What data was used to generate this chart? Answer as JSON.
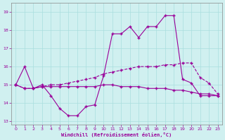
{
  "xlabel": "Windchill (Refroidissement éolien,°C)",
  "xlim": [
    -0.5,
    23.5
  ],
  "ylim": [
    12.8,
    19.5
  ],
  "yticks": [
    13,
    14,
    15,
    16,
    17,
    18,
    19
  ],
  "xticks": [
    0,
    1,
    2,
    3,
    4,
    5,
    6,
    7,
    8,
    9,
    10,
    11,
    12,
    13,
    14,
    15,
    16,
    17,
    18,
    19,
    20,
    21,
    22,
    23
  ],
  "bg_color": "#d0f0f0",
  "line_color": "#990099",
  "grid_color": "#a8dede",
  "line1_x": [
    0,
    1,
    2,
    3,
    4,
    5,
    6,
    7,
    8,
    9,
    10,
    11,
    12,
    13,
    14,
    15,
    16,
    17,
    18,
    19,
    20,
    21,
    22,
    23
  ],
  "line1_y": [
    15.0,
    16.0,
    14.8,
    15.0,
    14.4,
    13.7,
    13.3,
    13.3,
    13.8,
    13.9,
    15.5,
    17.8,
    17.8,
    18.2,
    17.6,
    18.2,
    18.2,
    18.8,
    18.8,
    15.3,
    15.1,
    14.4,
    14.4,
    14.4
  ],
  "line2_x": [
    0,
    1,
    2,
    3,
    4,
    5,
    6,
    7,
    8,
    9,
    10,
    11,
    12,
    13,
    14,
    15,
    16,
    17,
    18,
    19,
    20,
    21,
    22,
    23
  ],
  "line2_y": [
    15.0,
    14.8,
    14.8,
    14.9,
    15.0,
    15.0,
    15.1,
    15.2,
    15.3,
    15.4,
    15.6,
    15.7,
    15.8,
    15.9,
    16.0,
    16.0,
    16.0,
    16.1,
    16.1,
    16.2,
    16.2,
    15.4,
    15.1,
    14.5
  ],
  "line3_x": [
    0,
    1,
    2,
    3,
    4,
    5,
    6,
    7,
    8,
    9,
    10,
    11,
    12,
    13,
    14,
    15,
    16,
    17,
    18,
    19,
    20,
    21,
    22,
    23
  ],
  "line3_y": [
    15.0,
    14.8,
    14.8,
    14.9,
    14.9,
    14.9,
    14.9,
    14.9,
    14.9,
    14.9,
    15.0,
    15.0,
    14.9,
    14.9,
    14.9,
    14.8,
    14.8,
    14.8,
    14.7,
    14.7,
    14.6,
    14.5,
    14.5,
    14.4
  ]
}
